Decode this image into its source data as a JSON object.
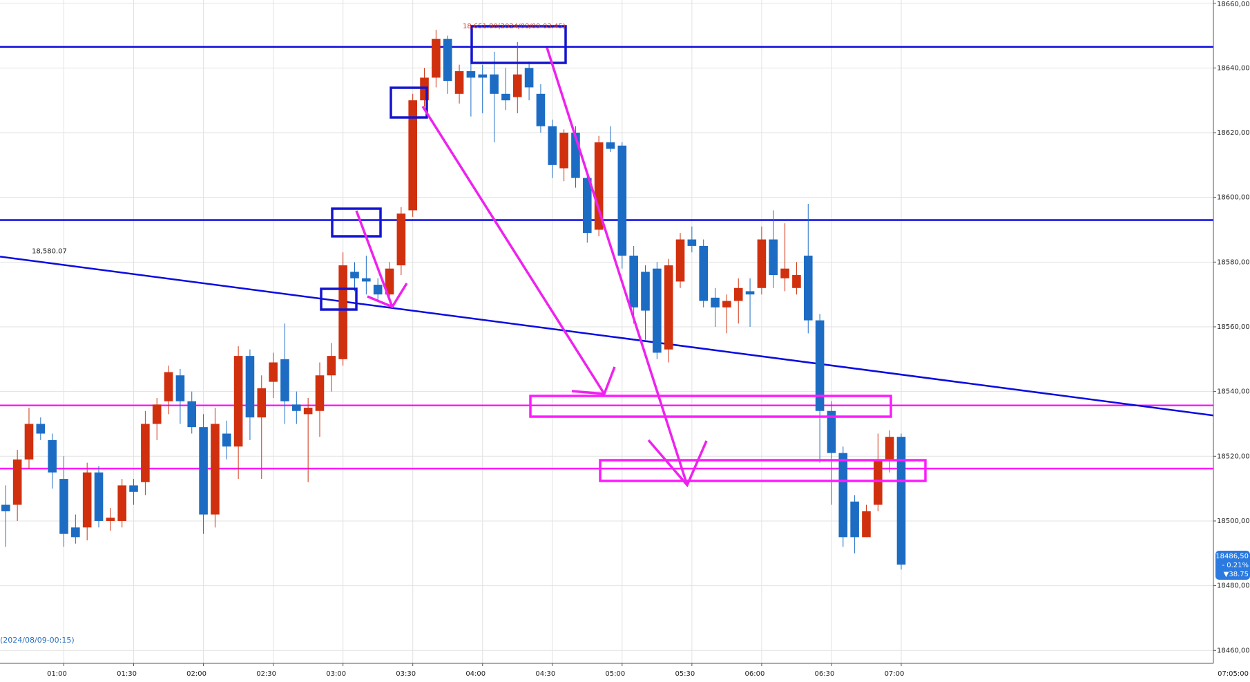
{
  "chart_data": {
    "type": "candlestick",
    "x": [
      "00:35",
      "00:40",
      "00:45",
      "00:50",
      "00:55",
      "01:00",
      "01:05",
      "01:10",
      "01:15",
      "01:20",
      "01:25",
      "01:30",
      "01:35",
      "01:40",
      "01:45",
      "01:50",
      "01:55",
      "02:00",
      "02:05",
      "02:10",
      "02:15",
      "02:20",
      "02:25",
      "02:30",
      "02:35",
      "02:40",
      "02:45",
      "02:50",
      "02:55",
      "03:00",
      "03:05",
      "03:10",
      "03:15",
      "03:20",
      "03:25",
      "03:30",
      "03:35",
      "03:40",
      "03:45",
      "03:50",
      "03:55",
      "04:00",
      "04:05",
      "04:10",
      "04:15",
      "04:20",
      "04:25",
      "04:30",
      "04:35",
      "04:40",
      "04:45",
      "04:50",
      "04:55",
      "05:00",
      "05:05",
      "05:10",
      "05:15",
      "05:20",
      "05:25",
      "05:30",
      "05:35",
      "05:40",
      "05:45",
      "05:50",
      "05:55",
      "06:00",
      "06:05",
      "06:10",
      "06:15",
      "06:20",
      "06:25",
      "06:30",
      "06:35",
      "06:40",
      "06:45",
      "06:50",
      "06:55",
      "07:00"
    ],
    "open": [
      18505,
      18505,
      18519,
      18530,
      18525,
      18513,
      18498,
      18498,
      18515,
      18500,
      18500,
      18511,
      18512,
      18530,
      18537,
      18545,
      18537,
      18529,
      18502,
      18527,
      18523,
      18551,
      18532,
      18543,
      18550,
      18536,
      18533,
      18534,
      18545,
      18550,
      18577,
      18575,
      18573,
      18570,
      18579,
      18596,
      18630,
      18637,
      18649,
      18632,
      18639,
      18638,
      18638,
      18632,
      18631,
      18640,
      18632,
      18622,
      18609,
      18620,
      18606,
      18590,
      18617,
      18616,
      18582,
      18577,
      18578,
      18553,
      18574,
      18587,
      18585,
      18569,
      18566,
      18568,
      18571,
      18572,
      18587,
      18575,
      18572,
      18582,
      18562,
      18534,
      18521,
      18506,
      18495,
      18505,
      18519,
      18526
    ],
    "high": [
      18511,
      18522,
      18535,
      18532,
      18527,
      18520,
      18502,
      18518,
      18517,
      18504,
      18513,
      18513,
      18534,
      18538,
      18548,
      18547,
      18540,
      18533,
      18535,
      18531,
      18554,
      18553,
      18545,
      18552,
      18561,
      18540,
      18538,
      18549,
      18555,
      18583,
      18580,
      18582,
      18575,
      18580,
      18597,
      18632,
      18640,
      18651.8,
      18650,
      18641,
      18645,
      18641,
      18645,
      18640,
      18648,
      18642,
      18635,
      18624,
      18621,
      18622,
      18608,
      18619,
      18622,
      18617,
      18585,
      18579,
      18580,
      18581,
      18589,
      18591,
      18587,
      18572,
      18570,
      18575,
      18575,
      18591,
      18596,
      18592,
      18580,
      18598,
      18564,
      18537,
      18523,
      18508,
      18505,
      18527,
      18528,
      18527
    ],
    "low": [
      18492,
      18500,
      18516,
      18525,
      18510,
      18492,
      18493,
      18494,
      18498,
      18497,
      18498,
      18505,
      18508,
      18525,
      18533,
      18530,
      18527,
      18496,
      18498,
      18519,
      18513,
      18525,
      18513,
      18538,
      18530,
      18530,
      18512,
      18526,
      18540,
      18548,
      18571,
      18570,
      18568,
      18568,
      18576,
      18594,
      18628,
      18634,
      18632,
      18629,
      18625,
      18626,
      18617,
      18627,
      18626,
      18630,
      18620,
      18606,
      18605,
      18603,
      18586,
      18588,
      18614,
      18578,
      18561,
      18556,
      18550,
      18549,
      18572,
      18583,
      18566,
      18560,
      18558,
      18561,
      18560,
      18570,
      18572,
      18571,
      18570,
      18558,
      18518,
      18505,
      18492,
      18490,
      18495,
      18503,
      18515,
      18485
    ],
    "close": [
      18503,
      18519,
      18530,
      18527,
      18515,
      18496,
      18495,
      18515,
      18500,
      18501,
      18511,
      18509,
      18530,
      18536,
      18546,
      18537,
      18529,
      18502,
      18530,
      18523,
      18551,
      18532,
      18541,
      18549,
      18537,
      18534,
      18535,
      18545,
      18551,
      18579,
      18575,
      18574,
      18570,
      18578,
      18595,
      18630,
      18637,
      18649,
      18636,
      18639,
      18637,
      18637,
      18632,
      18630,
      18638,
      18634,
      18622,
      18610,
      18620,
      18606,
      18589,
      18617,
      18615,
      18582,
      18566,
      18565,
      18552,
      18579,
      18587,
      18585,
      18568,
      18566,
      18568,
      18572,
      18570,
      18587,
      18576,
      18578,
      18576,
      18562,
      18534,
      18521,
      18495,
      18495,
      18503,
      18519,
      18526,
      18486.5
    ],
    "up_color": "#d0300e",
    "down_color": "#1c6cc4",
    "ylim": [
      18456,
      18661
    ],
    "yticks": [
      {
        "value": 18460,
        "label": "18460,00"
      },
      {
        "value": 18480,
        "label": "18480,00"
      },
      {
        "value": 18500,
        "label": "18500,00"
      },
      {
        "value": 18520,
        "label": "18520,00"
      },
      {
        "value": 18540,
        "label": "18540,00"
      },
      {
        "value": 18560,
        "label": "18560,00"
      },
      {
        "value": 18580,
        "label": "18580,00"
      },
      {
        "value": 18600,
        "label": "18600,00"
      },
      {
        "value": 18620,
        "label": "18620,00"
      },
      {
        "value": 18640,
        "label": "18640,00"
      },
      {
        "value": 18660,
        "label": "18660,00"
      }
    ],
    "xticks": [
      "01:00",
      "01:30",
      "02:00",
      "02:30",
      "03:00",
      "03:30",
      "04:00",
      "04:30",
      "05:00",
      "05:30",
      "06:00",
      "06:30",
      "07:00"
    ],
    "cursor_time": "07:05:00",
    "grid": true,
    "levels": [
      {
        "value": 18646.5,
        "color": "#0a0ae0"
      },
      {
        "value": 18593.0,
        "color": "#0a0ae0"
      },
      {
        "value": 18535.7,
        "color": "#ff1aff"
      },
      {
        "value": 18516.2,
        "color": "#ff1aff"
      }
    ],
    "trendline": {
      "values": [
        18581.7,
        18532.6
      ],
      "color": "#0a0ae0",
      "label": "18,580.07"
    },
    "high_label": "18,651.80(2024/08/09-03:45)",
    "start_label": "(2024/08/09-00:15)",
    "last_price": {
      "value": 18486.5,
      "label": "18486,50"
    },
    "change_pct": "- 0.21%",
    "change": "▼38.75"
  }
}
